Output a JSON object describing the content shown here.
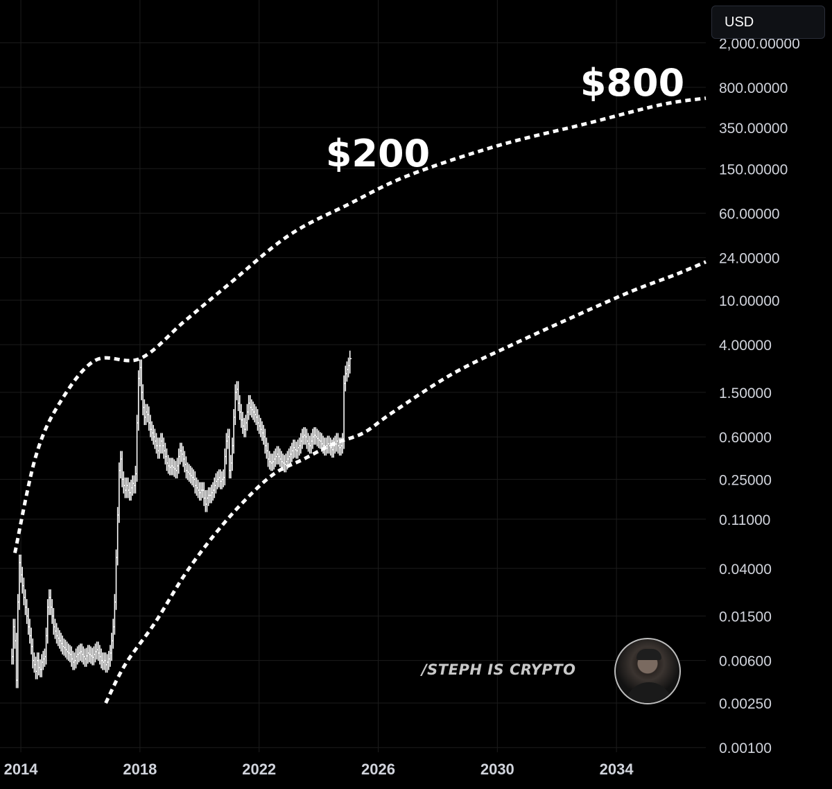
{
  "header": {
    "currency_label": "USD"
  },
  "watermark": {
    "text": "/STEPH IS CRYPTO"
  },
  "annotations": [
    {
      "label": "$200",
      "price": 200
    },
    {
      "label": "$800",
      "price": 800
    }
  ],
  "colors": {
    "background": "#000000",
    "axis_text": "#d1d4dc",
    "grid": "#1c1c1c",
    "price_bars": "#ffffff",
    "curves": "#ffffff"
  },
  "icons": {
    "avatar": "profile-photo-avatar"
  },
  "chart_data": {
    "type": "ohlc",
    "log_scale": true,
    "grid": true,
    "x_ticks": [
      "2014",
      "2018",
      "2022",
      "2026",
      "2030",
      "2034"
    ],
    "y_ticks": [
      "2,000.00000",
      "800.00000",
      "350.00000",
      "150.00000",
      "60.00000",
      "24.00000",
      "10.00000",
      "4.00000",
      "1.50000",
      "0.60000",
      "0.25000",
      "0.11000",
      "0.04000",
      "0.01500",
      "0.00600",
      "0.00250",
      "0.00100"
    ],
    "xlim": [
      2013.3,
      2037.0
    ],
    "series": [
      {
        "type": "bars",
        "points": [
          [
            2013.7,
            0.0065
          ],
          [
            2013.75,
            0.012
          ],
          [
            2013.8,
            0.009
          ],
          [
            2013.85,
            0.004
          ],
          [
            2013.9,
            0.02
          ],
          [
            2013.95,
            0.045
          ],
          [
            2014.0,
            0.035
          ],
          [
            2014.05,
            0.028
          ],
          [
            2014.1,
            0.022
          ],
          [
            2014.15,
            0.018
          ],
          [
            2014.2,
            0.015
          ],
          [
            2014.25,
            0.012
          ],
          [
            2014.3,
            0.01
          ],
          [
            2014.35,
            0.008
          ],
          [
            2014.4,
            0.006
          ],
          [
            2014.45,
            0.0055
          ],
          [
            2014.5,
            0.0048
          ],
          [
            2014.55,
            0.006
          ],
          [
            2014.6,
            0.0052
          ],
          [
            2014.65,
            0.005
          ],
          [
            2014.7,
            0.0058
          ],
          [
            2014.75,
            0.0062
          ],
          [
            2014.8,
            0.0065
          ],
          [
            2014.85,
            0.01
          ],
          [
            2014.9,
            0.018
          ],
          [
            2014.95,
            0.022
          ],
          [
            2015.0,
            0.018
          ],
          [
            2015.05,
            0.015
          ],
          [
            2015.1,
            0.012
          ],
          [
            2015.15,
            0.011
          ],
          [
            2015.2,
            0.01
          ],
          [
            2015.25,
            0.0095
          ],
          [
            2015.3,
            0.009
          ],
          [
            2015.35,
            0.0085
          ],
          [
            2015.4,
            0.008
          ],
          [
            2015.45,
            0.0078
          ],
          [
            2015.5,
            0.0075
          ],
          [
            2015.55,
            0.0072
          ],
          [
            2015.6,
            0.007
          ],
          [
            2015.65,
            0.0068
          ],
          [
            2015.7,
            0.0062
          ],
          [
            2015.75,
            0.0058
          ],
          [
            2015.8,
            0.006
          ],
          [
            2015.85,
            0.0065
          ],
          [
            2015.9,
            0.0068
          ],
          [
            2015.95,
            0.007
          ],
          [
            2016.0,
            0.0072
          ],
          [
            2016.05,
            0.0068
          ],
          [
            2016.1,
            0.0065
          ],
          [
            2016.15,
            0.0062
          ],
          [
            2016.2,
            0.0066
          ],
          [
            2016.25,
            0.007
          ],
          [
            2016.3,
            0.0068
          ],
          [
            2016.35,
            0.0066
          ],
          [
            2016.4,
            0.0064
          ],
          [
            2016.45,
            0.0068
          ],
          [
            2016.5,
            0.0072
          ],
          [
            2016.55,
            0.0075
          ],
          [
            2016.6,
            0.007
          ],
          [
            2016.65,
            0.0065
          ],
          [
            2016.7,
            0.006
          ],
          [
            2016.75,
            0.0058
          ],
          [
            2016.8,
            0.006
          ],
          [
            2016.85,
            0.0055
          ],
          [
            2016.9,
            0.0058
          ],
          [
            2016.95,
            0.0062
          ],
          [
            2017.0,
            0.007
          ],
          [
            2017.05,
            0.009
          ],
          [
            2017.1,
            0.012
          ],
          [
            2017.15,
            0.02
          ],
          [
            2017.2,
            0.05
          ],
          [
            2017.25,
            0.12
          ],
          [
            2017.3,
            0.3
          ],
          [
            2017.35,
            0.38
          ],
          [
            2017.4,
            0.25
          ],
          [
            2017.45,
            0.22
          ],
          [
            2017.5,
            0.2
          ],
          [
            2017.55,
            0.22
          ],
          [
            2017.6,
            0.2
          ],
          [
            2017.65,
            0.19
          ],
          [
            2017.7,
            0.21
          ],
          [
            2017.75,
            0.23
          ],
          [
            2017.8,
            0.22
          ],
          [
            2017.85,
            0.28
          ],
          [
            2017.9,
            0.8
          ],
          [
            2017.95,
            2.0
          ],
          [
            2018.0,
            2.5
          ],
          [
            2018.05,
            1.5
          ],
          [
            2018.1,
            1.1
          ],
          [
            2018.15,
            0.9
          ],
          [
            2018.2,
            1.0
          ],
          [
            2018.25,
            0.95
          ],
          [
            2018.3,
            0.8
          ],
          [
            2018.35,
            0.7
          ],
          [
            2018.4,
            0.65
          ],
          [
            2018.45,
            0.6
          ],
          [
            2018.5,
            0.55
          ],
          [
            2018.55,
            0.5
          ],
          [
            2018.6,
            0.45
          ],
          [
            2018.65,
            0.5
          ],
          [
            2018.7,
            0.55
          ],
          [
            2018.75,
            0.5
          ],
          [
            2018.8,
            0.45
          ],
          [
            2018.85,
            0.4
          ],
          [
            2018.9,
            0.35
          ],
          [
            2018.95,
            0.33
          ],
          [
            2019.0,
            0.32
          ],
          [
            2019.05,
            0.33
          ],
          [
            2019.1,
            0.32
          ],
          [
            2019.15,
            0.31
          ],
          [
            2019.2,
            0.3
          ],
          [
            2019.25,
            0.33
          ],
          [
            2019.3,
            0.4
          ],
          [
            2019.35,
            0.45
          ],
          [
            2019.4,
            0.42
          ],
          [
            2019.45,
            0.38
          ],
          [
            2019.5,
            0.34
          ],
          [
            2019.55,
            0.3
          ],
          [
            2019.6,
            0.29
          ],
          [
            2019.65,
            0.28
          ],
          [
            2019.7,
            0.27
          ],
          [
            2019.75,
            0.26
          ],
          [
            2019.8,
            0.25
          ],
          [
            2019.85,
            0.22
          ],
          [
            2019.9,
            0.21
          ],
          [
            2019.95,
            0.2
          ],
          [
            2020.0,
            0.19
          ],
          [
            2020.05,
            0.2
          ],
          [
            2020.1,
            0.2
          ],
          [
            2020.15,
            0.17
          ],
          [
            2020.2,
            0.15
          ],
          [
            2020.25,
            0.17
          ],
          [
            2020.3,
            0.18
          ],
          [
            2020.35,
            0.18
          ],
          [
            2020.4,
            0.19
          ],
          [
            2020.45,
            0.2
          ],
          [
            2020.5,
            0.22
          ],
          [
            2020.55,
            0.24
          ],
          [
            2020.6,
            0.25
          ],
          [
            2020.65,
            0.26
          ],
          [
            2020.7,
            0.24
          ],
          [
            2020.75,
            0.25
          ],
          [
            2020.8,
            0.26
          ],
          [
            2020.85,
            0.4
          ],
          [
            2020.9,
            0.55
          ],
          [
            2020.95,
            0.6
          ],
          [
            2021.0,
            0.3
          ],
          [
            2021.05,
            0.35
          ],
          [
            2021.1,
            0.5
          ],
          [
            2021.15,
            0.9
          ],
          [
            2021.2,
            1.5
          ],
          [
            2021.25,
            1.6
          ],
          [
            2021.3,
            1.2
          ],
          [
            2021.35,
            1.0
          ],
          [
            2021.4,
            0.85
          ],
          [
            2021.45,
            0.75
          ],
          [
            2021.5,
            0.7
          ],
          [
            2021.55,
            0.8
          ],
          [
            2021.6,
            1.0
          ],
          [
            2021.65,
            1.2
          ],
          [
            2021.7,
            1.1
          ],
          [
            2021.75,
            1.05
          ],
          [
            2021.8,
            1.0
          ],
          [
            2021.85,
            0.95
          ],
          [
            2021.9,
            0.9
          ],
          [
            2021.95,
            0.8
          ],
          [
            2022.0,
            0.75
          ],
          [
            2022.05,
            0.7
          ],
          [
            2022.1,
            0.65
          ],
          [
            2022.15,
            0.6
          ],
          [
            2022.2,
            0.5
          ],
          [
            2022.25,
            0.45
          ],
          [
            2022.3,
            0.38
          ],
          [
            2022.35,
            0.36
          ],
          [
            2022.4,
            0.35
          ],
          [
            2022.45,
            0.36
          ],
          [
            2022.5,
            0.38
          ],
          [
            2022.55,
            0.4
          ],
          [
            2022.6,
            0.42
          ],
          [
            2022.65,
            0.4
          ],
          [
            2022.7,
            0.38
          ],
          [
            2022.75,
            0.36
          ],
          [
            2022.8,
            0.35
          ],
          [
            2022.85,
            0.34
          ],
          [
            2022.9,
            0.36
          ],
          [
            2022.95,
            0.38
          ],
          [
            2023.0,
            0.4
          ],
          [
            2023.05,
            0.42
          ],
          [
            2023.1,
            0.45
          ],
          [
            2023.15,
            0.48
          ],
          [
            2023.2,
            0.46
          ],
          [
            2023.25,
            0.45
          ],
          [
            2023.3,
            0.48
          ],
          [
            2023.35,
            0.5
          ],
          [
            2023.4,
            0.55
          ],
          [
            2023.45,
            0.6
          ],
          [
            2023.5,
            0.62
          ],
          [
            2023.55,
            0.6
          ],
          [
            2023.6,
            0.55
          ],
          [
            2023.65,
            0.52
          ],
          [
            2023.7,
            0.5
          ],
          [
            2023.75,
            0.55
          ],
          [
            2023.8,
            0.6
          ],
          [
            2023.85,
            0.62
          ],
          [
            2023.9,
            0.6
          ],
          [
            2023.95,
            0.58
          ],
          [
            2024.0,
            0.56
          ],
          [
            2024.05,
            0.55
          ],
          [
            2024.1,
            0.52
          ],
          [
            2024.15,
            0.5
          ],
          [
            2024.2,
            0.48
          ],
          [
            2024.25,
            0.5
          ],
          [
            2024.3,
            0.52
          ],
          [
            2024.35,
            0.5
          ],
          [
            2024.4,
            0.48
          ],
          [
            2024.45,
            0.46
          ],
          [
            2024.5,
            0.5
          ],
          [
            2024.55,
            0.52
          ],
          [
            2024.6,
            0.55
          ],
          [
            2024.65,
            0.5
          ],
          [
            2024.7,
            0.48
          ],
          [
            2024.75,
            0.5
          ],
          [
            2024.8,
            0.55
          ],
          [
            2024.85,
            1.8
          ],
          [
            2024.9,
            2.2
          ],
          [
            2024.95,
            2.4
          ],
          [
            2025.0,
            2.6
          ],
          [
            2025.05,
            3.0
          ]
        ]
      },
      {
        "type": "dotted-curve",
        "points": [
          [
            2013.8,
            0.055
          ],
          [
            2014.5,
            0.4
          ],
          [
            2015.3,
            1.2
          ],
          [
            2016.5,
            2.9
          ],
          [
            2018.0,
            3.0
          ],
          [
            2019.5,
            6.5
          ],
          [
            2021.0,
            14
          ],
          [
            2023.0,
            38
          ],
          [
            2025.0,
            72
          ],
          [
            2027.0,
            130
          ],
          [
            2030.0,
            240
          ],
          [
            2033.0,
            380
          ],
          [
            2035.5,
            560
          ],
          [
            2037.0,
            640
          ]
        ]
      },
      {
        "type": "dotted-curve",
        "points": [
          [
            2016.85,
            0.0025
          ],
          [
            2017.5,
            0.0055
          ],
          [
            2018.5,
            0.013
          ],
          [
            2019.5,
            0.035
          ],
          [
            2020.5,
            0.08
          ],
          [
            2021.5,
            0.16
          ],
          [
            2022.5,
            0.28
          ],
          [
            2023.5,
            0.38
          ],
          [
            2024.5,
            0.52
          ],
          [
            2025.5,
            0.65
          ],
          [
            2026.5,
            1.0
          ],
          [
            2028.5,
            2.2
          ],
          [
            2030.5,
            4.0
          ],
          [
            2032.5,
            7.0
          ],
          [
            2034.5,
            12
          ],
          [
            2036.0,
            17
          ],
          [
            2037.0,
            22
          ]
        ]
      }
    ]
  }
}
